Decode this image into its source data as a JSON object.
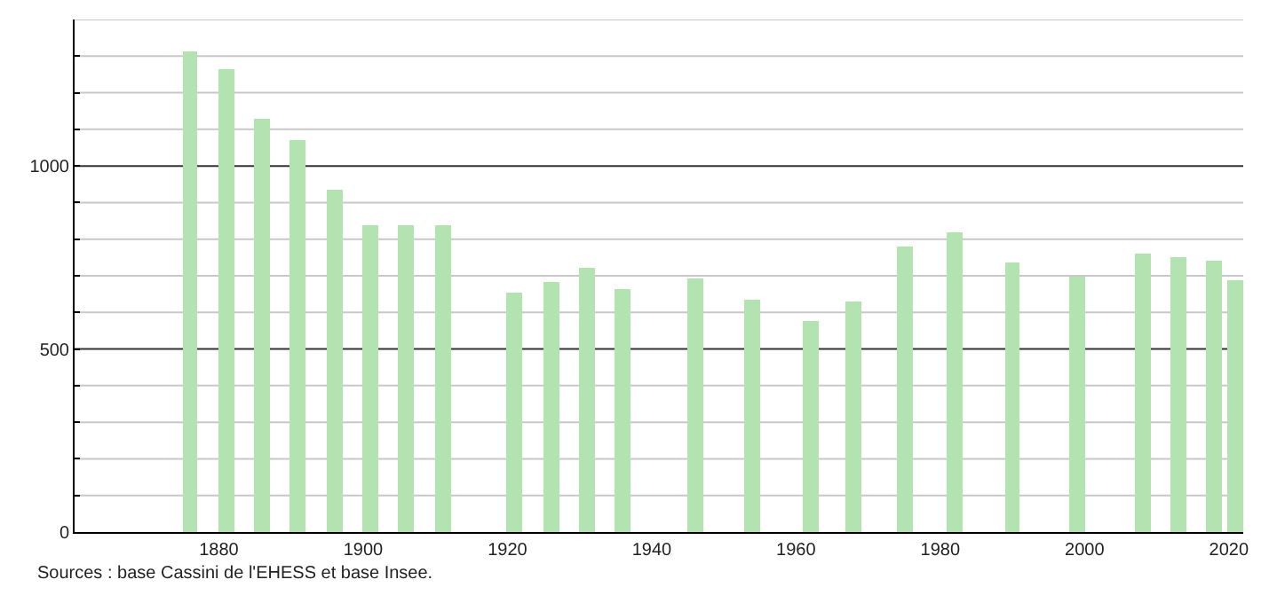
{
  "chart_data": {
    "type": "bar",
    "x": [
      1876,
      1881,
      1886,
      1891,
      1896,
      1901,
      1906,
      1911,
      1921,
      1926,
      1931,
      1936,
      1946,
      1954,
      1962,
      1968,
      1975,
      1982,
      1990,
      1999,
      2008,
      2013,
      2018,
      2021
    ],
    "values": [
      1315,
      1262,
      1131,
      1073,
      937,
      840,
      840,
      840,
      655,
      684,
      723,
      665,
      694,
      636,
      578,
      631,
      782,
      820,
      738,
      699,
      762,
      752,
      743,
      689
    ],
    "color": "#b3e3b0",
    "xlim": [
      1860,
      2022
    ],
    "xticks": [
      1880,
      1900,
      1920,
      1940,
      1960,
      1980,
      2000,
      2020
    ],
    "ylim": [
      0,
      1400
    ],
    "yticks": [
      0,
      {
        "value": 100,
        "label": null
      },
      {
        "value": 200,
        "label": null
      },
      {
        "value": 300,
        "label": null
      },
      {
        "value": 400,
        "label": null
      },
      500,
      {
        "value": 600,
        "label": null
      },
      {
        "value": 700,
        "label": null
      },
      {
        "value": 800,
        "label": null
      },
      {
        "value": 900,
        "label": null
      },
      1000,
      {
        "value": 1100,
        "label": null
      },
      {
        "value": 1200,
        "label": null
      },
      {
        "value": 1300,
        "label": null
      },
      {
        "value": 1400,
        "label": null
      }
    ],
    "grid": "y",
    "annotations": [
      "Sources : base Cassini de l'EHESS et base Insee."
    ]
  }
}
